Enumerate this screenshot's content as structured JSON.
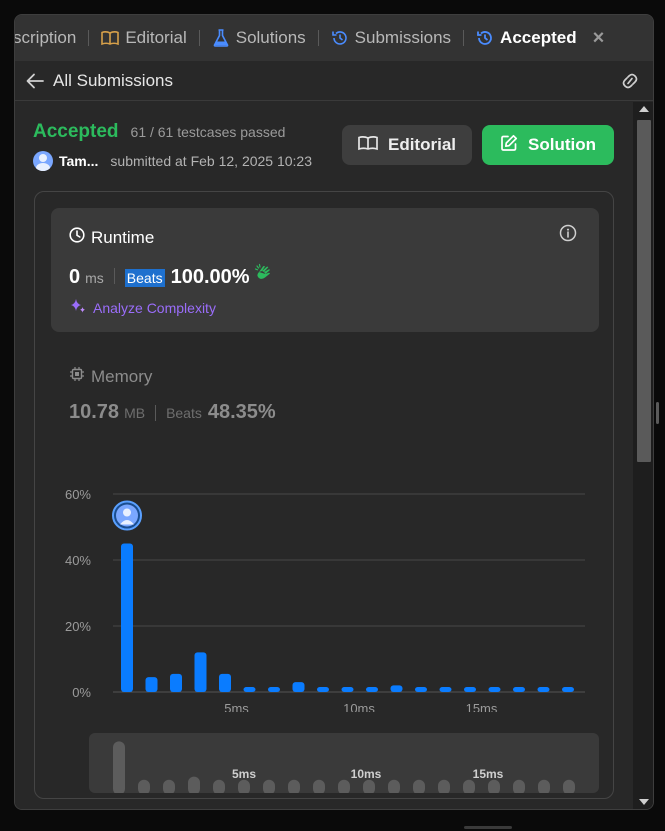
{
  "tabs": [
    {
      "label": "scription",
      "icon": "description-icon"
    },
    {
      "label": "Editorial",
      "icon": "book-icon",
      "icon_color": "#d6a04a"
    },
    {
      "label": "Solutions",
      "icon": "flask-icon",
      "icon_color": "#4a8cff"
    },
    {
      "label": "Submissions",
      "icon": "history-icon",
      "icon_color": "#4a8cff"
    },
    {
      "label": "Accepted",
      "icon": "history-icon",
      "icon_color": "#4a8cff",
      "active": true
    }
  ],
  "subbar": {
    "title": "All Submissions"
  },
  "submission": {
    "status": "Accepted",
    "testcases": "61 / 61 testcases passed",
    "user": "Tam...",
    "submitted_at": "submitted at Feb 12, 2025 10:23",
    "editorial_button": "Editorial",
    "solution_button": "Solution"
  },
  "runtime": {
    "title": "Runtime",
    "value": "0",
    "unit": "ms",
    "beats_label": "Beats",
    "beats_pct": "100.00%",
    "analyze": "Analyze Complexity"
  },
  "memory": {
    "title": "Memory",
    "value": "10.78",
    "unit": "MB",
    "beats_label": "Beats",
    "beats_pct": "48.35%"
  },
  "colors": {
    "accent_green": "#2cbb5d",
    "bar_blue": "#0a7cff",
    "analyze_purple": "#9a6dfa",
    "highlight_blue": "#1e70ce"
  },
  "chart_data": {
    "type": "bar",
    "ylabel_ticks": [
      "60%",
      "40%",
      "20%",
      "0%"
    ],
    "ylim": [
      0,
      60
    ],
    "x_tick_labels": [
      "5ms",
      "10ms",
      "15ms"
    ],
    "x_tick_positions": [
      5,
      10,
      15
    ],
    "x": [
      0,
      1,
      2,
      3,
      4,
      5,
      6,
      7,
      8,
      9,
      10,
      11,
      12,
      13,
      14,
      15,
      16,
      17,
      18
    ],
    "values": [
      45,
      4.5,
      5.5,
      12,
      5.5,
      1.5,
      1.5,
      3,
      1.5,
      1.5,
      1.5,
      2,
      1.5,
      1.5,
      1.5,
      1.5,
      1.5,
      1.5,
      1.5
    ],
    "user_bar_index": 0,
    "grid": true,
    "mini_values": [
      13,
      1,
      1,
      2,
      1,
      1,
      1,
      1,
      1,
      1,
      1,
      1,
      1,
      1,
      1,
      1,
      1,
      1,
      1
    ]
  }
}
